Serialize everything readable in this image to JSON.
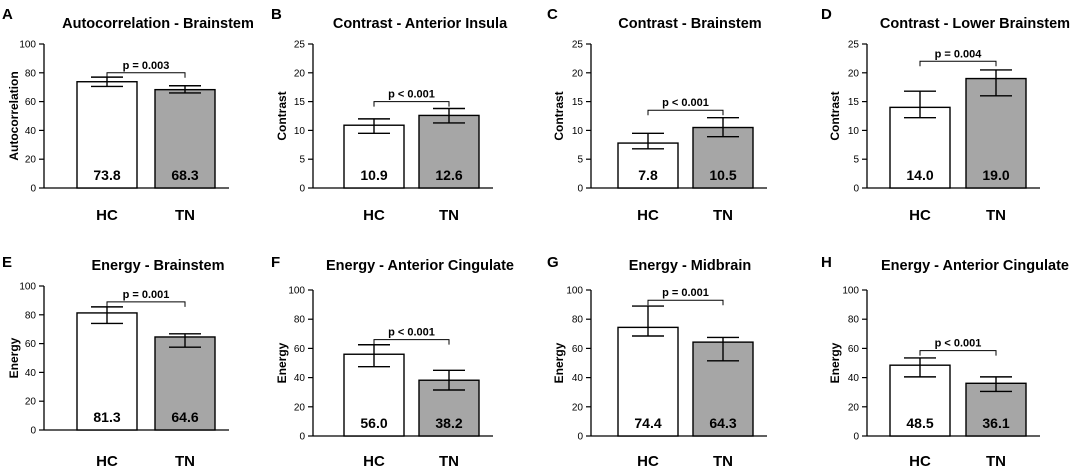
{
  "colors": {
    "hc": "#ffffff",
    "tn": "#a6a6a6",
    "stroke": "#000000"
  },
  "chart_data": [
    {
      "type": "bar",
      "panel": "A",
      "title": "Autocorrelation - Brainstem",
      "ylabel": "Autocorrelation",
      "ylim": [
        0,
        100
      ],
      "yticks": [
        0,
        20,
        40,
        60,
        80,
        100
      ],
      "categories": [
        "HC",
        "TN"
      ],
      "values": [
        73.8,
        68.3
      ],
      "value_labels": [
        "73.8",
        "68.3"
      ],
      "err_low": [
        70.5,
        66.0
      ],
      "err_high": [
        77.0,
        71.0
      ],
      "pvalue": "p = 0.003",
      "bracket_y": 80.0
    },
    {
      "type": "bar",
      "panel": "B",
      "title": "Contrast - Anterior Insula",
      "ylabel": "Contrast",
      "ylim": [
        0,
        25
      ],
      "yticks": [
        0,
        5,
        10,
        15,
        20,
        25
      ],
      "categories": [
        "HC",
        "TN"
      ],
      "values": [
        10.9,
        12.6
      ],
      "value_labels": [
        "10.9",
        "12.6"
      ],
      "err_low": [
        9.5,
        11.3
      ],
      "err_high": [
        12.0,
        13.8
      ],
      "pvalue": "p < 0.001",
      "bracket_y": 15.0
    },
    {
      "type": "bar",
      "panel": "C",
      "title": "Contrast - Brainstem",
      "ylabel": "Contrast",
      "ylim": [
        0,
        25
      ],
      "yticks": [
        0,
        5,
        10,
        15,
        20,
        25
      ],
      "categories": [
        "HC",
        "TN"
      ],
      "values": [
        7.8,
        10.5
      ],
      "value_labels": [
        "7.8",
        "10.5"
      ],
      "err_low": [
        6.8,
        8.9
      ],
      "err_high": [
        9.5,
        12.2
      ],
      "pvalue": "p < 0.001",
      "bracket_y": 13.5
    },
    {
      "type": "bar",
      "panel": "D",
      "title": "Contrast - Lower Brainstem",
      "ylabel": "Contrast",
      "ylim": [
        0,
        25
      ],
      "yticks": [
        0,
        5,
        10,
        15,
        20,
        25
      ],
      "categories": [
        "HC",
        "TN"
      ],
      "values": [
        14.0,
        19.0
      ],
      "value_labels": [
        "14.0",
        "19.0"
      ],
      "err_low": [
        12.2,
        16.0
      ],
      "err_high": [
        16.8,
        20.5
      ],
      "pvalue": "p = 0.004",
      "bracket_y": 22.0
    },
    {
      "type": "bar",
      "panel": "E",
      "title": "Energy - Brainstem",
      "ylabel": "Energy",
      "ylim": [
        0,
        100
      ],
      "yticks": [
        0,
        20,
        40,
        60,
        80,
        100
      ],
      "categories": [
        "HC",
        "TN"
      ],
      "values": [
        81.3,
        64.6
      ],
      "value_labels": [
        "81.3",
        "64.6"
      ],
      "err_low": [
        74.0,
        57.5
      ],
      "err_high": [
        85.5,
        66.8
      ],
      "pvalue": "p = 0.001",
      "bracket_y": 89.0
    },
    {
      "type": "bar",
      "panel": "F",
      "title": "Energy - Anterior Cingulate",
      "ylabel": "Energy",
      "ylim": [
        0,
        100
      ],
      "yticks": [
        0,
        20,
        40,
        60,
        80,
        100
      ],
      "categories": [
        "HC",
        "TN"
      ],
      "values": [
        56.0,
        38.2
      ],
      "value_labels": [
        "56.0",
        "38.2"
      ],
      "err_low": [
        47.5,
        31.5
      ],
      "err_high": [
        62.5,
        45.0
      ],
      "pvalue": "p < 0.001",
      "bracket_y": 66.0
    },
    {
      "type": "bar",
      "panel": "G",
      "title": "Energy - Midbrain",
      "ylabel": "Energy",
      "ylim": [
        0,
        100
      ],
      "yticks": [
        0,
        20,
        40,
        60,
        80,
        100
      ],
      "categories": [
        "HC",
        "TN"
      ],
      "values": [
        74.4,
        64.3
      ],
      "value_labels": [
        "74.4",
        "64.3"
      ],
      "err_low": [
        68.5,
        51.5
      ],
      "err_high": [
        89.0,
        67.5
      ],
      "pvalue": "p = 0.001",
      "bracket_y": 93.0
    },
    {
      "type": "bar",
      "panel": "H",
      "title": "Energy - Anterior Cingulate",
      "ylabel": "Energy",
      "ylim": [
        0,
        100
      ],
      "yticks": [
        0,
        20,
        40,
        60,
        80,
        100
      ],
      "categories": [
        "HC",
        "TN"
      ],
      "values": [
        48.5,
        36.1
      ],
      "value_labels": [
        "48.5",
        "36.1"
      ],
      "err_low": [
        40.5,
        30.5
      ],
      "err_high": [
        53.5,
        40.5
      ],
      "pvalue": "p < 0.001",
      "bracket_y": 58.5
    }
  ]
}
